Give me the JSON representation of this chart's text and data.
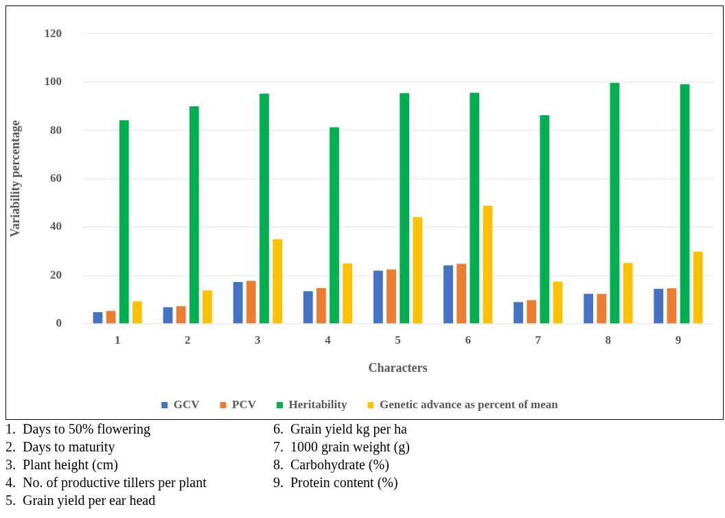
{
  "chart_data": {
    "type": "bar",
    "xlabel": "Characters",
    "ylabel": "Variability percentage",
    "categories": [
      "1",
      "2",
      "3",
      "4",
      "5",
      "6",
      "7",
      "8",
      "9"
    ],
    "series": [
      {
        "name": "GCV",
        "color": "#4472c4",
        "values": [
          4.8,
          6.9,
          17.3,
          13.5,
          22,
          24.2,
          9,
          12.4,
          14.5
        ]
      },
      {
        "name": "PCV",
        "color": "#ed7d31",
        "values": [
          5.3,
          7.3,
          17.8,
          14.8,
          22.5,
          24.8,
          9.8,
          12.4,
          14.7
        ]
      },
      {
        "name": "Heritability",
        "color": "#00b050",
        "values": [
          84.2,
          90,
          95.2,
          81.3,
          95.4,
          95.6,
          86.3,
          99.7,
          99.1
        ]
      },
      {
        "name": "Genetic advance as percent of mean",
        "color": "#ffc000",
        "values": [
          9.3,
          13.8,
          35,
          25,
          44.2,
          48.9,
          17.5,
          25.2,
          29.9
        ]
      }
    ],
    "ylim": [
      0,
      120
    ],
    "yticks": [
      0,
      20,
      40,
      60,
      80,
      100,
      120
    ],
    "grid": "y",
    "legend": "bottom",
    "annotations": [
      "1.  Days to 50% flowering",
      "2.  Days to maturity",
      "3.  Plant height (cm)",
      "4.  No. of productive tillers per plant",
      "5.  Grain yield per ear head",
      "6.  Grain yield kg per ha",
      "7.  1000 grain weight (g)",
      "8.  Carbohydrate (%)",
      "9.  Protein content (%)"
    ]
  }
}
